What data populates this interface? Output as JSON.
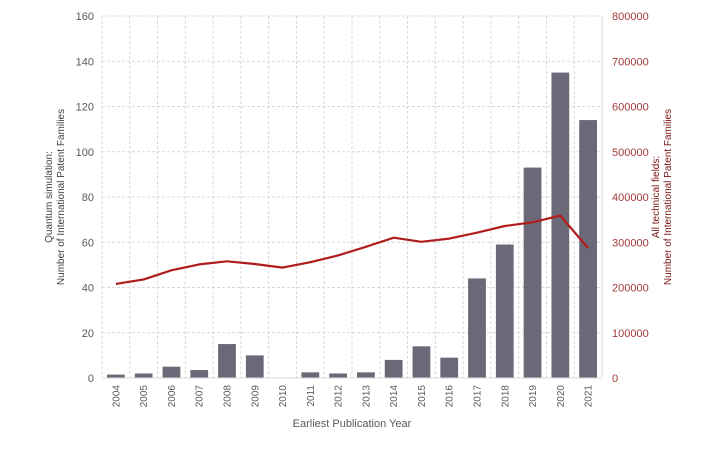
{
  "chart_data": {
    "type": "bar+line",
    "title": "",
    "xlabel": "Earliest Publication Year",
    "ylabel_left_line1": "Quantum simulation:",
    "ylabel_left_line2": "Number of International Patent Families",
    "ylabel_right_line1": "All technical fields:",
    "ylabel_right_line2": "Number of International Patent Families",
    "categories": [
      "2004",
      "2005",
      "2006",
      "2007",
      "2008",
      "2009",
      "2010",
      "2011",
      "2012",
      "2013",
      "2014",
      "2015",
      "2016",
      "2017",
      "2018",
      "2019",
      "2020",
      "2021"
    ],
    "series": [
      {
        "name": "Quantum simulation",
        "type": "bar",
        "axis": "left",
        "color": "#6b6878",
        "values": [
          1.5,
          2,
          5,
          3.5,
          15,
          10,
          0,
          2.5,
          2,
          2.5,
          8,
          14,
          9,
          44,
          59,
          93,
          135,
          114
        ]
      },
      {
        "name": "All technical fields",
        "type": "line",
        "axis": "right",
        "color": "#b01c1c",
        "values": [
          208000,
          218000,
          238000,
          251000,
          258000,
          252000,
          244000,
          256000,
          271000,
          290000,
          310000,
          301000,
          308000,
          321000,
          336000,
          344000,
          359000,
          287000
        ]
      }
    ],
    "ylim_left": [
      0,
      160
    ],
    "ylim_right": [
      0,
      800000
    ],
    "yticks_left": [
      0,
      20,
      40,
      60,
      80,
      100,
      120,
      140,
      160
    ],
    "yticks_right": [
      0,
      100000,
      200000,
      300000,
      400000,
      500000,
      600000,
      700000,
      800000
    ],
    "grid": true,
    "legend": "none"
  }
}
